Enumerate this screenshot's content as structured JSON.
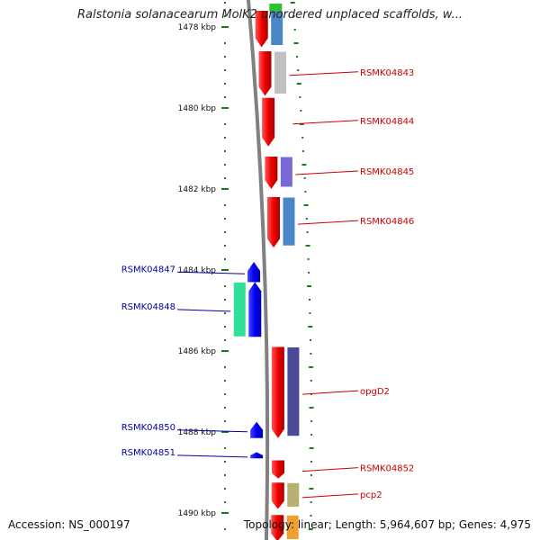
{
  "title": "Ralstonia solanacearum MolK2 unordered unplaced scaffolds, w...",
  "footer": {
    "accession": "Accession: NS_000197",
    "summary": "Topology: linear; Length: 5,964,607 bp; Genes: 4,975"
  },
  "ruler": {
    "unit": "kbp",
    "ticks": [
      {
        "label": "1478 kbp",
        "kbp": 1478
      },
      {
        "label": "1480 kbp",
        "kbp": 1480
      },
      {
        "label": "1482 kbp",
        "kbp": 1482
      },
      {
        "label": "1484 kbp",
        "kbp": 1484
      },
      {
        "label": "1486 kbp",
        "kbp": 1486
      },
      {
        "label": "1488 kbp",
        "kbp": 1488
      },
      {
        "label": "1490 kbp",
        "kbp": 1490
      }
    ]
  },
  "colors": {
    "forward_label": "#cc0000",
    "reverse_label": "#0000aa",
    "backbone": "#888888",
    "tick": "#1a7a1a"
  },
  "forward_genes": [
    {
      "name": "",
      "start": 1477.6,
      "end": 1478.5,
      "cog_color": "#4a86c8"
    },
    {
      "name": "RSMK04843",
      "start": 1478.6,
      "end": 1479.7,
      "cog_color": "#c0c0c0"
    },
    {
      "name": "RSMK04844",
      "start": 1479.75,
      "end": 1480.95,
      "cog_color": ""
    },
    {
      "name": "RSMK04845",
      "start": 1481.2,
      "end": 1482.0,
      "cog_color": "#7b68d8"
    },
    {
      "name": "RSMK04846",
      "start": 1482.2,
      "end": 1483.45,
      "cog_color": "#4a86c8"
    },
    {
      "name": "opgD2",
      "start": 1485.9,
      "end": 1488.15,
      "cog_color": "#4a4a98"
    },
    {
      "name": "RSMK04852",
      "start": 1488.7,
      "end": 1489.15,
      "cog_color": ""
    },
    {
      "name": "pcp2",
      "start": 1489.25,
      "end": 1489.9,
      "cog_color": "#b8b070"
    },
    {
      "name": "",
      "start": 1490.05,
      "end": 1490.7,
      "cog_color": "#f0a030"
    }
  ],
  "reverse_genes": [
    {
      "name": "RSMK04847",
      "start": 1483.8,
      "end": 1484.3,
      "cog_color": ""
    },
    {
      "name": "RSMK04848",
      "start": 1484.3,
      "end": 1485.65,
      "cog_color": "#30e098"
    },
    {
      "name": "RSMK04850",
      "start": 1487.75,
      "end": 1488.15,
      "cog_color": ""
    },
    {
      "name": "RSMK04851",
      "start": 1488.5,
      "end": 1488.65,
      "cog_color": ""
    }
  ],
  "top_cog_sliver": {
    "start": 1477.6,
    "end": 1477.75,
    "cog_color": "#30c030"
  }
}
